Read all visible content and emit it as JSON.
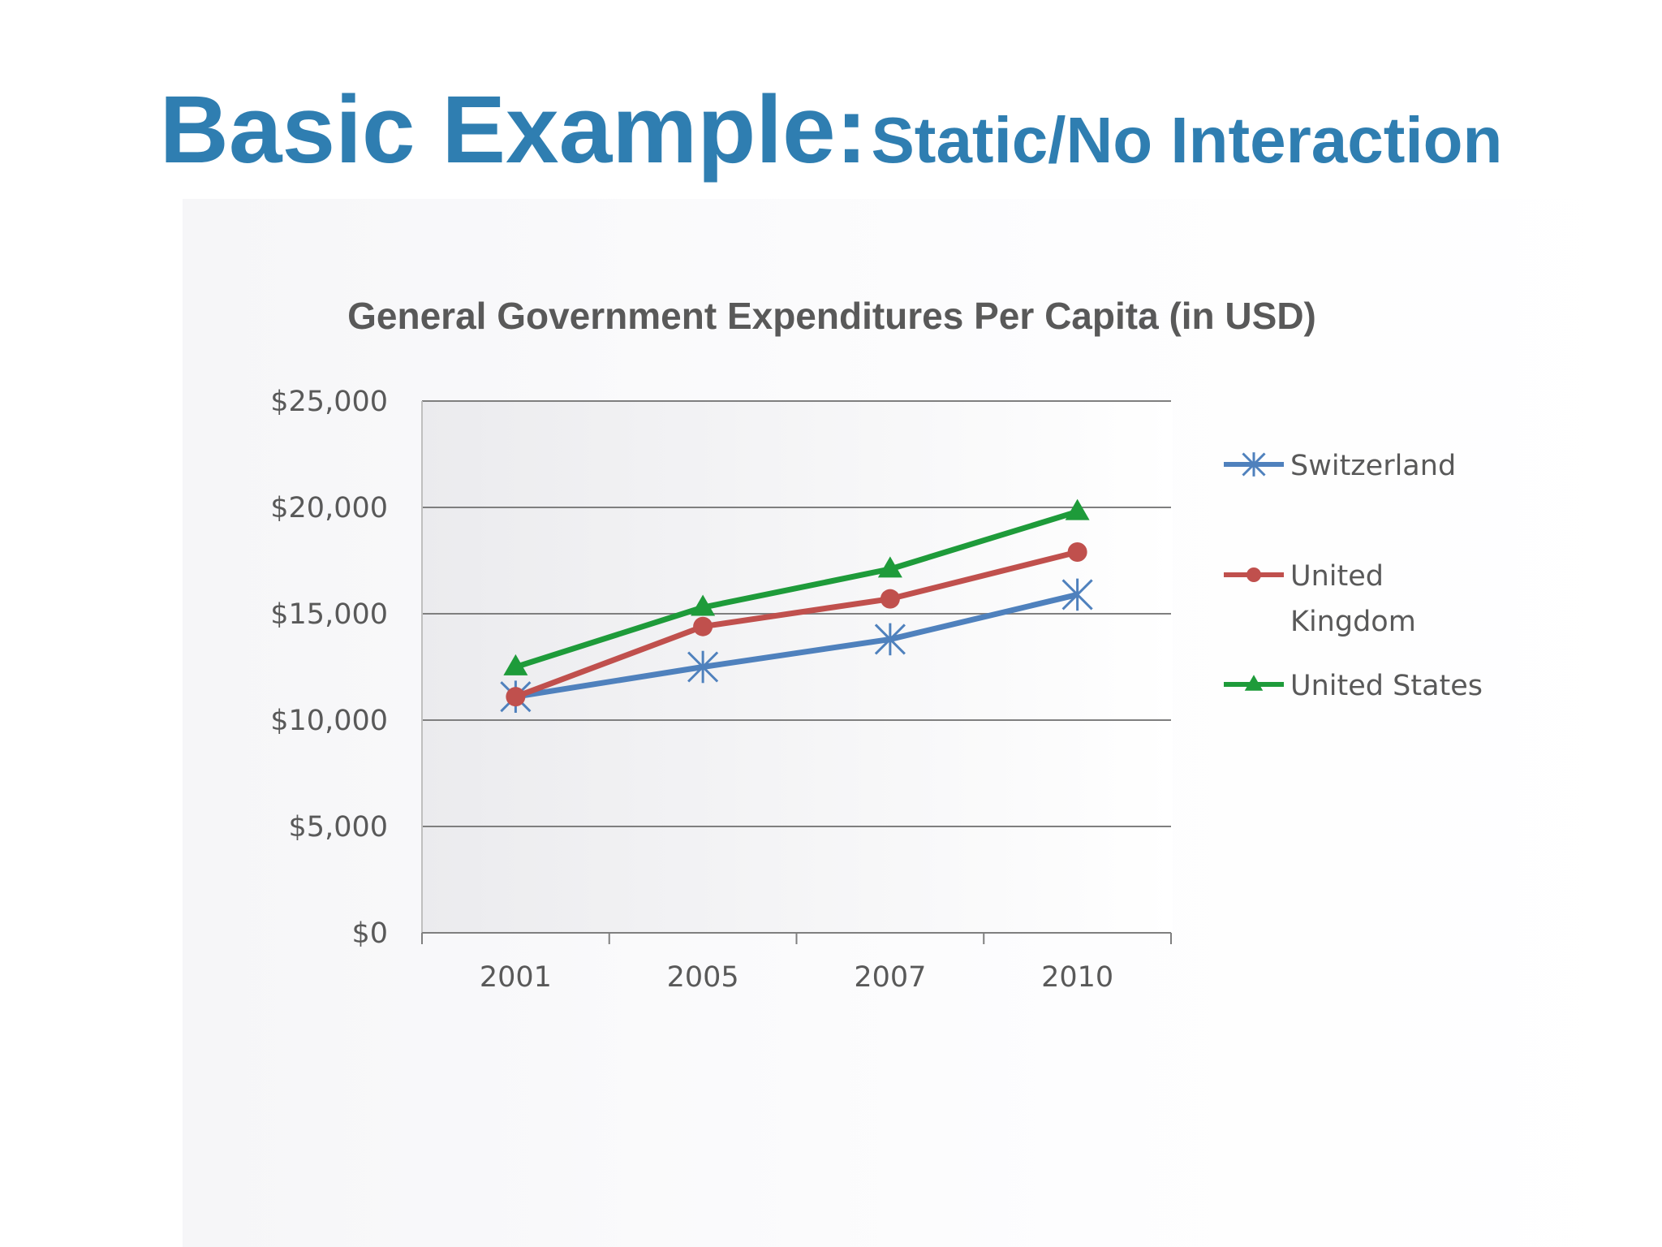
{
  "slide": {
    "title_main": "Basic Example:",
    "title_sub": "Static/No Interaction"
  },
  "colors": {
    "title": "#2f7eb1",
    "grid": "#7f7f7f",
    "text": "#595959",
    "switzerland": "#4f81bd",
    "united_kingdom": "#c0504d",
    "united_states": "#1e9b3a"
  },
  "chart_data": {
    "type": "line",
    "title": "General Government Expenditures Per Capita (in USD)",
    "xlabel": "",
    "ylabel": "",
    "categories": [
      "2001",
      "2005",
      "2007",
      "2010"
    ],
    "ylim": [
      0,
      25000
    ],
    "ytick_labels": [
      "$0",
      "$5,000",
      "$10,000",
      "$15,000",
      "$20,000",
      "$25,000"
    ],
    "grid": true,
    "legend_position": "right",
    "series": [
      {
        "name": "Switzerland",
        "values": [
          11100,
          12500,
          13800,
          15900
        ],
        "color": "#4f81bd",
        "marker": "asterisk"
      },
      {
        "name": "United Kingdom",
        "legend_lines": [
          "United",
          "Kingdom"
        ],
        "values": [
          11100,
          14400,
          15700,
          17900
        ],
        "color": "#c0504d",
        "marker": "circle"
      },
      {
        "name": "United States",
        "values": [
          12500,
          15300,
          17100,
          19800
        ],
        "color": "#1e9b3a",
        "marker": "triangle"
      }
    ]
  }
}
